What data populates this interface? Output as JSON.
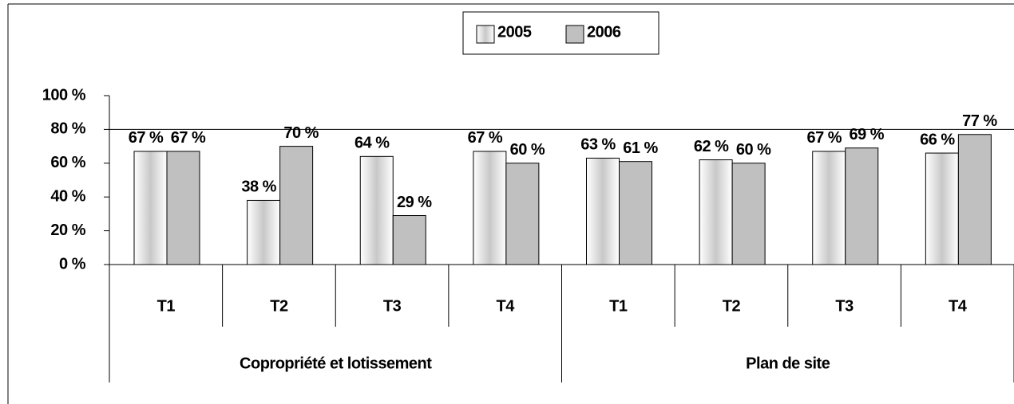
{
  "chart_data": {
    "type": "bar",
    "categories": [
      "T1",
      "T2",
      "T3",
      "T4",
      "T1",
      "T2",
      "T3",
      "T4"
    ],
    "groups": [
      "Copropriété et lotissement",
      "Plan de site"
    ],
    "series": [
      {
        "name": "2005",
        "color": "#ffffff",
        "values": [
          67,
          38,
          64,
          67,
          63,
          62,
          67,
          66
        ],
        "value_labels": [
          "67 %",
          "38 %",
          "64 %",
          "67 %",
          "63 %",
          "62 %",
          "67 %",
          "66 %"
        ]
      },
      {
        "name": "2006",
        "color": "#c0c0c0",
        "values": [
          67,
          70,
          29,
          60,
          61,
          60,
          69,
          77
        ],
        "value_labels": [
          "67 %",
          "70 %",
          "29 %",
          "60 %",
          "61 %",
          "60 %",
          "69 %",
          "77 %"
        ]
      }
    ],
    "ylim": [
      0,
      100
    ],
    "yticks": [
      {
        "value": 0,
        "label": "0 %"
      },
      {
        "value": 20,
        "label": "20 %"
      },
      {
        "value": 40,
        "label": "40 %"
      },
      {
        "value": 60,
        "label": "60 %"
      },
      {
        "value": 80,
        "label": "80 %"
      },
      {
        "value": 100,
        "label": "100 %"
      }
    ],
    "reference_line": 80,
    "legend": "top"
  }
}
